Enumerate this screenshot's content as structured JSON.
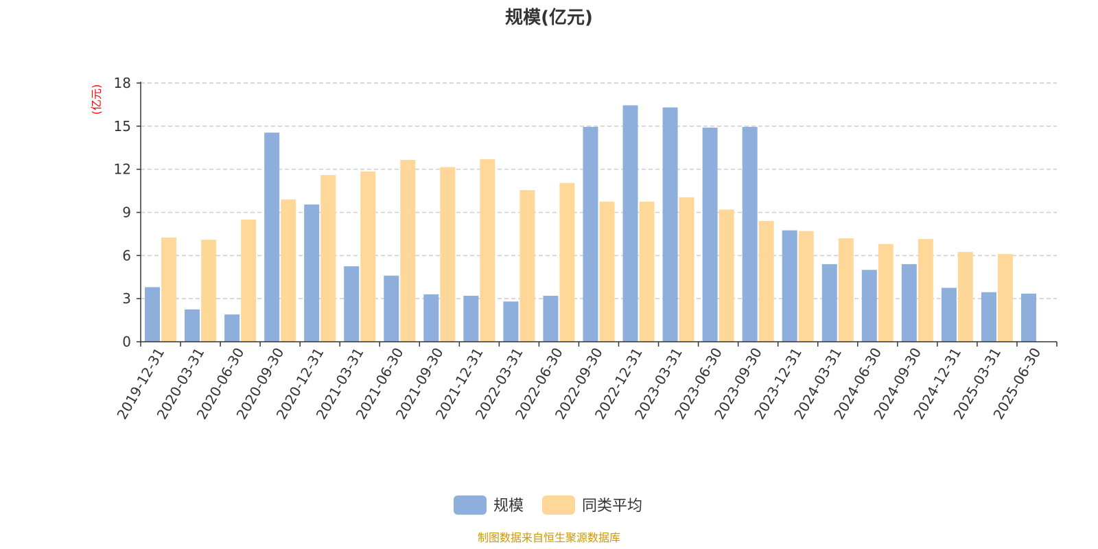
{
  "chart_data": {
    "type": "bar",
    "title": "规模(亿元)",
    "y_unit": "(亿元)",
    "ylim": [
      0,
      18
    ],
    "yticks": [
      0,
      3,
      6,
      9,
      12,
      15,
      18
    ],
    "grid": true,
    "legend_position": "bottom-center",
    "categories": [
      "2019-12-31",
      "2020-03-31",
      "2020-06-30",
      "2020-09-30",
      "2020-12-31",
      "2021-03-31",
      "2021-06-30",
      "2021-09-30",
      "2021-12-31",
      "2022-03-31",
      "2022-06-30",
      "2022-09-30",
      "2022-12-31",
      "2023-03-31",
      "2023-06-30",
      "2023-09-30",
      "2023-12-31",
      "2024-03-31",
      "2024-06-30",
      "2024-09-30",
      "2024-12-31",
      "2025-03-31",
      "2025-06-30"
    ],
    "series": [
      {
        "name": "规模",
        "color": "#8eaedb",
        "values": [
          3.8,
          2.25,
          1.9,
          14.55,
          9.55,
          5.25,
          4.6,
          3.3,
          3.2,
          2.8,
          3.2,
          14.95,
          16.45,
          16.3,
          14.9,
          14.95,
          7.75,
          5.4,
          5.0,
          5.4,
          3.75,
          3.45,
          3.35
        ]
      },
      {
        "name": "同类平均",
        "color": "#ffd899",
        "values": [
          7.25,
          7.1,
          8.5,
          9.9,
          11.6,
          11.85,
          12.65,
          12.15,
          12.7,
          10.55,
          11.05,
          9.75,
          9.75,
          10.05,
          9.2,
          8.4,
          7.7,
          7.2,
          6.8,
          7.15,
          6.25,
          6.1,
          null
        ]
      }
    ]
  },
  "footer": {
    "source": "制图数据来自恒生聚源数据库"
  }
}
